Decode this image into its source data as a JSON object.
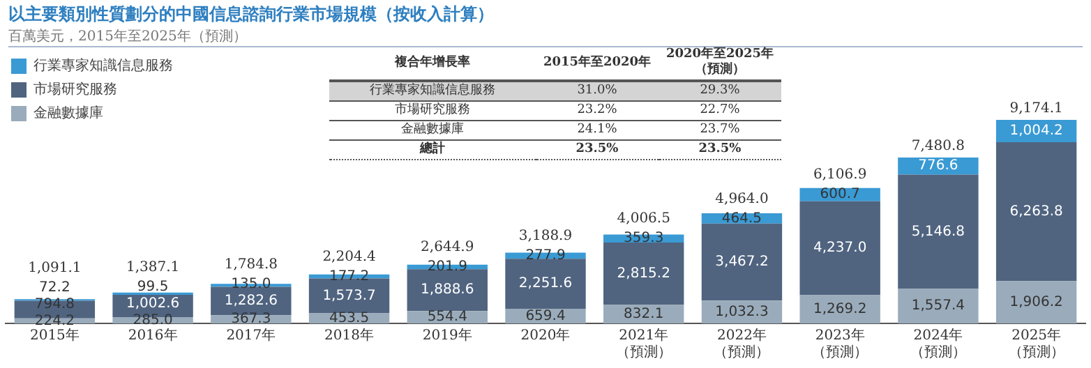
{
  "chart_data": {
    "type": "bar",
    "stacked": true,
    "legend": "top left",
    "title": "以主要類別性質劃分的中國信息諮詢行業市場規模（按收入計算）",
    "subtitle": "百萬美元，2015年至2025年（預測）",
    "categories": [
      "2015年",
      "2016年",
      "2017年",
      "2018年",
      "2019年",
      "2020年",
      "2021年（預測）",
      "2022年（預測）",
      "2023年（預測）",
      "2024年（預測）",
      "2025年（預測）"
    ],
    "series": [
      {
        "name": "金融數據庫",
        "color": "#9aacbb",
        "values": [
          224.2,
          285.0,
          367.3,
          453.5,
          554.4,
          659.4,
          832.1,
          1032.3,
          1269.2,
          1557.4,
          1906.2
        ],
        "value_labels": [
          "224.2",
          "285.0",
          "367.3",
          "453.5",
          "554.4",
          "659.4",
          "832.1",
          "1,032.3",
          "1,269.2",
          "1,557.4",
          "1,906.2"
        ]
      },
      {
        "name": "市場研究服務",
        "color": "#506480",
        "values": [
          794.8,
          1002.6,
          1282.6,
          1573.7,
          1888.6,
          2251.6,
          2815.2,
          3467.2,
          4237.0,
          5146.8,
          6263.8
        ],
        "value_labels": [
          "794.8",
          "1,002.6",
          "1,282.6",
          "1,573.7",
          "1,888.6",
          "2,251.6",
          "2,815.2",
          "3,467.2",
          "4,237.0",
          "5,146.8",
          "6,263.8"
        ]
      },
      {
        "name": "行業專家知識信息服務",
        "color": "#3a9ad4",
        "values": [
          72.2,
          99.5,
          135.0,
          177.2,
          201.9,
          277.9,
          359.3,
          464.5,
          600.7,
          776.6,
          1004.2
        ],
        "value_labels": [
          "72.2",
          "99.5",
          "135.0",
          "177.2",
          "201.9",
          "277.9",
          "359.3",
          "464.5",
          "600.7",
          "776.6",
          "1,004.2"
        ]
      }
    ],
    "totals": [
      "1,091.1",
      "1,387.1",
      "1,784.8",
      "2,204.4",
      "2,644.9",
      "3,188.9",
      "4,006.5",
      "4,964.0",
      "6,106.9",
      "7,480.8",
      "9,174.1"
    ],
    "annotations": [
      "複合年增長率",
      "2015年至2020年",
      "2020年至2025年（預測）",
      "行業專家知識信息服務",
      "31.0%",
      "29.3%",
      "市場研究服務",
      "23.2%",
      "22.7%",
      "金融數據庫",
      "24.1%",
      "23.7%",
      "總計",
      "23.5%",
      "23.5%"
    ]
  }
}
